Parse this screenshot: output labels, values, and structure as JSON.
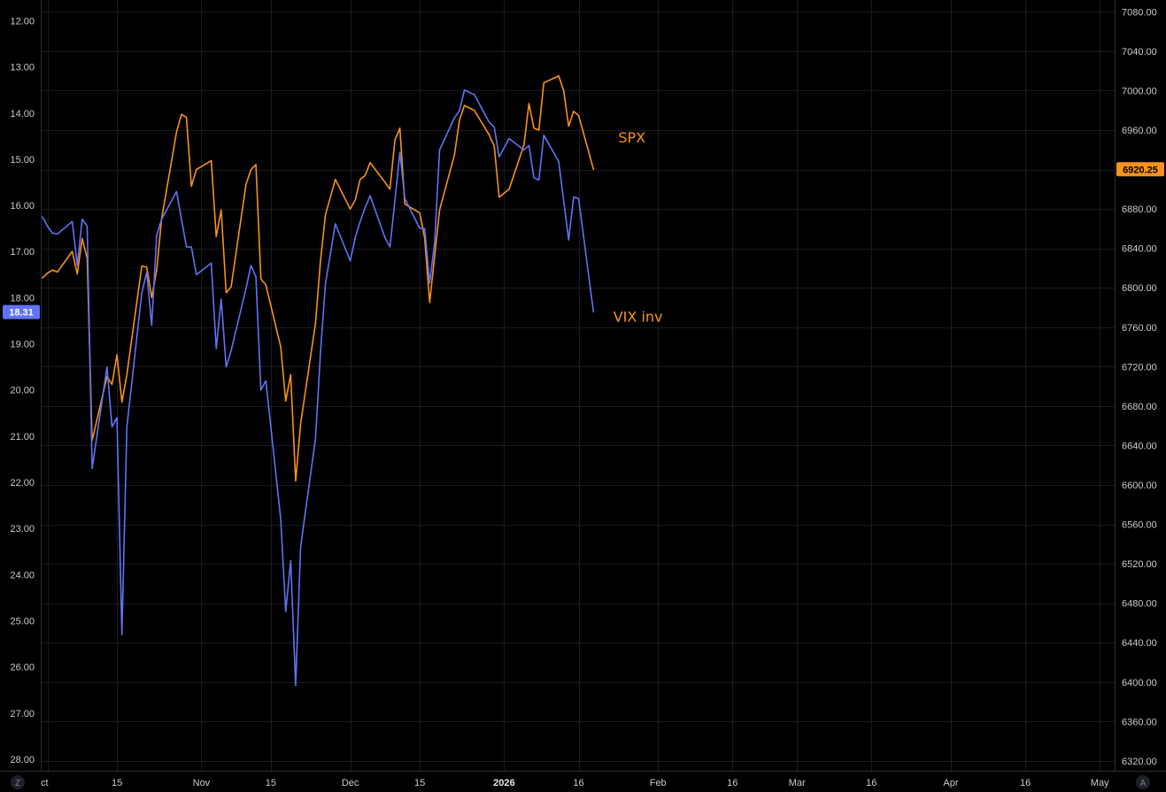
{
  "chart_data": {
    "type": "line",
    "theme": {
      "background": "#000000",
      "grid": "#1a1c22",
      "axis_line": "#2a2e39",
      "tick_text": "#c9cbd1"
    },
    "left_axis": {
      "inverted": true,
      "ylim": [
        11.55,
        28.25
      ],
      "ticks": [
        12,
        13,
        14,
        15,
        16,
        17,
        18,
        19,
        20,
        21,
        22,
        23,
        24,
        25,
        26,
        27,
        28
      ],
      "tick_labels": [
        "12.00",
        "13.00",
        "14.00",
        "15.00",
        "16.00",
        "17.00",
        "18.00",
        "19.00",
        "20.00",
        "21.00",
        "22.00",
        "23.00",
        "24.00",
        "25.00",
        "26.00",
        "27.00",
        "28.00"
      ]
    },
    "right_axis": {
      "ylim": [
        6310,
        7092
      ],
      "ticks": [
        6320,
        6360,
        6400,
        6440,
        6480,
        6520,
        6560,
        6600,
        6640,
        6680,
        6720,
        6760,
        6800,
        6840,
        6880,
        6920,
        6960,
        7000,
        7040,
        7080
      ],
      "tick_labels": [
        "6320.00",
        "6360.00",
        "6400.00",
        "6440.00",
        "6480.00",
        "6520.00",
        "6560.00",
        "6600.00",
        "6640.00",
        "6680.00",
        "6720.00",
        "6760.00",
        "6800.00",
        "6840.00",
        "6880.00",
        "6920.00",
        "6960.00",
        "7000.00",
        "7040.00",
        "7080.00"
      ]
    },
    "x_axis": {
      "range": [
        "2025-09-30",
        "2026-05-04"
      ],
      "ticks": [
        {
          "date": "2025-10-01",
          "label": "Oct",
          "bold": false
        },
        {
          "date": "2025-10-15",
          "label": "15",
          "bold": false
        },
        {
          "date": "2025-11-01",
          "label": "Nov",
          "bold": false
        },
        {
          "date": "2025-11-15",
          "label": "15",
          "bold": false
        },
        {
          "date": "2025-12-01",
          "label": "Dec",
          "bold": false
        },
        {
          "date": "2025-12-15",
          "label": "15",
          "bold": false
        },
        {
          "date": "2026-01-01",
          "label": "2026",
          "bold": true
        },
        {
          "date": "2026-01-16",
          "label": "16",
          "bold": false
        },
        {
          "date": "2026-02-01",
          "label": "Feb",
          "bold": false
        },
        {
          "date": "2026-02-16",
          "label": "16",
          "bold": false
        },
        {
          "date": "2026-03-01",
          "label": "Mar",
          "bold": false
        },
        {
          "date": "2026-03-16",
          "label": "16",
          "bold": false
        },
        {
          "date": "2026-04-01",
          "label": "Apr",
          "bold": false
        },
        {
          "date": "2026-04-16",
          "label": "16",
          "bold": false
        },
        {
          "date": "2026-05-01",
          "label": "May",
          "bold": false
        }
      ],
      "clipped_first_label": "ct"
    },
    "series": [
      {
        "name": "SPX",
        "color": "#f7931a",
        "axis": "right",
        "last_value_label": "6920.25",
        "points": [
          [
            "2025-09-30",
            6810
          ],
          [
            "2025-10-01",
            6815
          ],
          [
            "2025-10-02",
            6818
          ],
          [
            "2025-10-03",
            6816
          ],
          [
            "2025-10-06",
            6837
          ],
          [
            "2025-10-07",
            6814
          ],
          [
            "2025-10-08",
            6850
          ],
          [
            "2025-10-09",
            6830
          ],
          [
            "2025-10-10",
            6645
          ],
          [
            "2025-10-13",
            6710
          ],
          [
            "2025-10-14",
            6702
          ],
          [
            "2025-10-15",
            6732
          ],
          [
            "2025-10-16",
            6684
          ],
          [
            "2025-10-17",
            6712
          ],
          [
            "2025-10-20",
            6822
          ],
          [
            "2025-10-21",
            6821
          ],
          [
            "2025-10-22",
            6790
          ],
          [
            "2025-10-23",
            6818
          ],
          [
            "2025-10-24",
            6870
          ],
          [
            "2025-10-27",
            6958
          ],
          [
            "2025-10-28",
            6976
          ],
          [
            "2025-10-29",
            6973
          ],
          [
            "2025-10-30",
            6903
          ],
          [
            "2025-10-31",
            6920
          ],
          [
            "2025-11-03",
            6929
          ],
          [
            "2025-11-04",
            6852
          ],
          [
            "2025-11-05",
            6879
          ],
          [
            "2025-11-06",
            6795
          ],
          [
            "2025-11-07",
            6801
          ],
          [
            "2025-11-10",
            6905
          ],
          [
            "2025-11-11",
            6920
          ],
          [
            "2025-11-12",
            6925
          ],
          [
            "2025-11-13",
            6809
          ],
          [
            "2025-11-14",
            6803
          ],
          [
            "2025-11-17",
            6740
          ],
          [
            "2025-11-18",
            6685
          ],
          [
            "2025-11-19",
            6712
          ],
          [
            "2025-11-20",
            6604
          ],
          [
            "2025-11-21",
            6662
          ],
          [
            "2025-11-24",
            6764
          ],
          [
            "2025-11-25",
            6827
          ],
          [
            "2025-11-26",
            6874
          ],
          [
            "2025-11-28",
            6910
          ],
          [
            "2025-12-01",
            6880
          ],
          [
            "2025-12-02",
            6889
          ],
          [
            "2025-12-03",
            6910
          ],
          [
            "2025-12-04",
            6914
          ],
          [
            "2025-12-05",
            6927
          ],
          [
            "2025-12-08",
            6907
          ],
          [
            "2025-12-09",
            6900
          ],
          [
            "2025-12-10",
            6950
          ],
          [
            "2025-12-11",
            6962
          ],
          [
            "2025-12-12",
            6885
          ],
          [
            "2025-12-15",
            6876
          ],
          [
            "2025-12-16",
            6850
          ],
          [
            "2025-12-17",
            6785
          ],
          [
            "2025-12-18",
            6832
          ],
          [
            "2025-12-19",
            6879
          ],
          [
            "2025-12-22",
            6935
          ],
          [
            "2025-12-23",
            6970
          ],
          [
            "2025-12-24",
            6985
          ],
          [
            "2025-12-26",
            6980
          ],
          [
            "2025-12-29",
            6955
          ],
          [
            "2025-12-30",
            6944
          ],
          [
            "2025-12-31",
            6892
          ],
          [
            "2026-01-02",
            6900
          ],
          [
            "2026-01-05",
            6945
          ],
          [
            "2026-01-06",
            6987
          ],
          [
            "2026-01-07",
            6962
          ],
          [
            "2026-01-08",
            6960
          ],
          [
            "2026-01-09",
            7008
          ],
          [
            "2026-01-12",
            7015
          ],
          [
            "2026-01-13",
            7000
          ],
          [
            "2026-01-14",
            6964
          ],
          [
            "2026-01-15",
            6979
          ],
          [
            "2026-01-16",
            6975
          ],
          [
            "2026-01-19",
            6920.25
          ]
        ]
      },
      {
        "name": "VIX inv",
        "color": "#6272f4",
        "axis": "left",
        "last_value_label": "18.31",
        "points": [
          [
            "2025-09-30",
            16.25
          ],
          [
            "2025-10-01",
            16.45
          ],
          [
            "2025-10-02",
            16.6
          ],
          [
            "2025-10-03",
            16.62
          ],
          [
            "2025-10-06",
            16.35
          ],
          [
            "2025-10-07",
            17.3
          ],
          [
            "2025-10-08",
            16.3
          ],
          [
            "2025-10-09",
            16.45
          ],
          [
            "2025-10-10",
            21.7
          ],
          [
            "2025-10-13",
            19.5
          ],
          [
            "2025-10-14",
            20.8
          ],
          [
            "2025-10-15",
            20.6
          ],
          [
            "2025-10-16",
            25.3
          ],
          [
            "2025-10-17",
            20.8
          ],
          [
            "2025-10-20",
            17.9
          ],
          [
            "2025-10-21",
            17.45
          ],
          [
            "2025-10-22",
            18.6
          ],
          [
            "2025-10-23",
            16.65
          ],
          [
            "2025-10-24",
            16.3
          ],
          [
            "2025-10-27",
            15.7
          ],
          [
            "2025-10-28",
            16.3
          ],
          [
            "2025-10-29",
            16.9
          ],
          [
            "2025-10-30",
            16.9
          ],
          [
            "2025-10-31",
            17.5
          ],
          [
            "2025-11-03",
            17.25
          ],
          [
            "2025-11-04",
            19.1
          ],
          [
            "2025-11-05",
            18.03
          ],
          [
            "2025-11-06",
            19.5
          ],
          [
            "2025-11-07",
            19.15
          ],
          [
            "2025-11-10",
            17.8
          ],
          [
            "2025-11-11",
            17.3
          ],
          [
            "2025-11-12",
            17.55
          ],
          [
            "2025-11-13",
            20.0
          ],
          [
            "2025-11-14",
            19.8
          ],
          [
            "2025-11-17",
            22.8
          ],
          [
            "2025-11-18",
            24.8
          ],
          [
            "2025-11-19",
            23.7
          ],
          [
            "2025-11-20",
            26.4
          ],
          [
            "2025-11-21",
            23.4
          ],
          [
            "2025-11-24",
            21.05
          ],
          [
            "2025-11-25",
            19.2
          ],
          [
            "2025-11-26",
            17.7
          ],
          [
            "2025-11-28",
            16.4
          ],
          [
            "2025-12-01",
            17.2
          ],
          [
            "2025-12-02",
            16.7
          ],
          [
            "2025-12-03",
            16.35
          ],
          [
            "2025-12-04",
            16.05
          ],
          [
            "2025-12-05",
            15.79
          ],
          [
            "2025-12-08",
            16.7
          ],
          [
            "2025-12-09",
            16.9
          ],
          [
            "2025-12-10",
            15.9
          ],
          [
            "2025-12-11",
            14.85
          ],
          [
            "2025-12-12",
            15.85
          ],
          [
            "2025-12-15",
            16.5
          ],
          [
            "2025-12-16",
            16.5
          ],
          [
            "2025-12-17",
            17.68
          ],
          [
            "2025-12-18",
            16.8
          ],
          [
            "2025-12-19",
            14.8
          ],
          [
            "2025-12-22",
            14.1
          ],
          [
            "2025-12-23",
            13.95
          ],
          [
            "2025-12-24",
            13.5
          ],
          [
            "2025-12-26",
            13.6
          ],
          [
            "2025-12-29",
            14.2
          ],
          [
            "2025-12-30",
            14.3
          ],
          [
            "2025-12-31",
            14.95
          ],
          [
            "2026-01-02",
            14.55
          ],
          [
            "2026-01-05",
            14.8
          ],
          [
            "2026-01-06",
            14.7
          ],
          [
            "2026-01-07",
            15.4
          ],
          [
            "2026-01-08",
            15.45
          ],
          [
            "2026-01-09",
            14.48
          ],
          [
            "2026-01-12",
            15.05
          ],
          [
            "2026-01-13",
            15.9
          ],
          [
            "2026-01-14",
            16.75
          ],
          [
            "2026-01-15",
            15.82
          ],
          [
            "2026-01-16",
            15.85
          ],
          [
            "2026-01-19",
            18.31
          ]
        ]
      }
    ],
    "annotations": [
      {
        "text": "SPX",
        "date": "2026-01-24",
        "axis": "right",
        "value": 6953
      },
      {
        "text": "VIX inv",
        "date": "2026-01-23",
        "axis": "left",
        "value": 18.4
      }
    ],
    "corner_labels": {
      "left": "Z",
      "right": "A"
    }
  }
}
